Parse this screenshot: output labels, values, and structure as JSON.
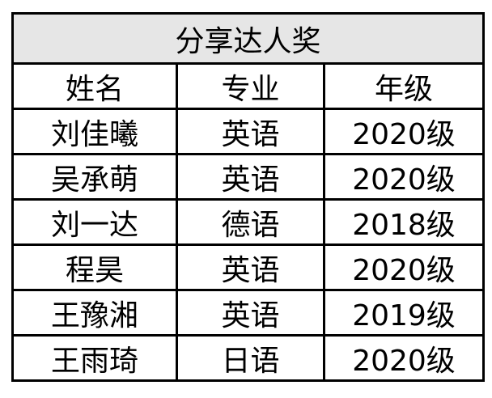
{
  "table": {
    "title": "分享达人奖",
    "headers": [
      "姓名",
      "专业",
      "年级"
    ],
    "rows": [
      [
        "刘佳曦",
        "英语",
        "2020级"
      ],
      [
        "吴承萌",
        "英语",
        "2020级"
      ],
      [
        "刘一达",
        "德语",
        "2018级"
      ],
      [
        "程昊",
        "英语",
        "2020级"
      ],
      [
        "王豫湘",
        "英语",
        "2019级"
      ],
      [
        "王雨琦",
        "日语",
        "2020级"
      ]
    ],
    "title_background": "#e6e6e6"
  }
}
